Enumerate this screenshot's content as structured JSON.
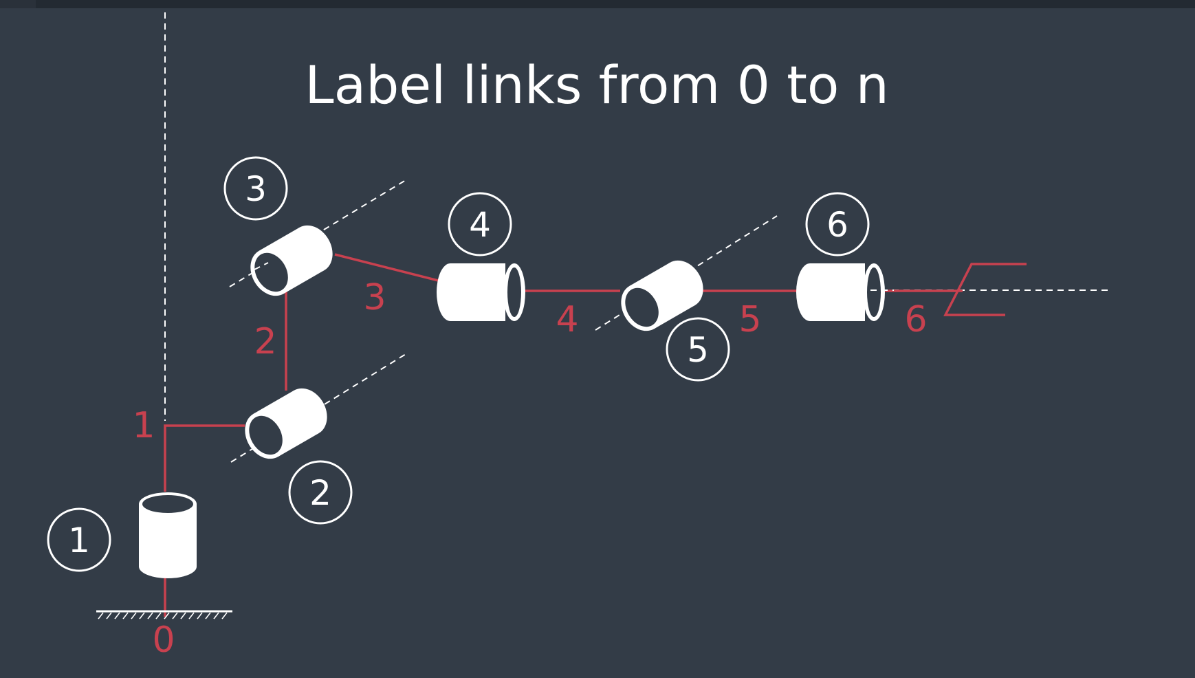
{
  "title": "Label links from 0 to n",
  "colors": {
    "background": "#333c47",
    "link": "#c8414f",
    "joint": "#ffffff",
    "axis": "#ffffff"
  },
  "joints": [
    {
      "id": "joint-1",
      "label": "1",
      "icon": "cylinder-vertical-icon"
    },
    {
      "id": "joint-2",
      "label": "2",
      "icon": "cylinder-revolute-icon"
    },
    {
      "id": "joint-3",
      "label": "3",
      "icon": "cylinder-revolute-icon"
    },
    {
      "id": "joint-4",
      "label": "4",
      "icon": "cylinder-horizontal-icon"
    },
    {
      "id": "joint-5",
      "label": "5",
      "icon": "cylinder-revolute-icon"
    },
    {
      "id": "joint-6",
      "label": "6",
      "icon": "cylinder-horizontal-icon"
    }
  ],
  "links": [
    {
      "id": "link-0",
      "label": "0"
    },
    {
      "id": "link-1",
      "label": "1"
    },
    {
      "id": "link-2",
      "label": "2"
    },
    {
      "id": "link-3",
      "label": "3"
    },
    {
      "id": "link-4",
      "label": "4"
    },
    {
      "id": "link-5",
      "label": "5"
    },
    {
      "id": "link-6",
      "label": "6"
    }
  ],
  "icons": [
    "ground-base-icon",
    "gripper-icon"
  ]
}
